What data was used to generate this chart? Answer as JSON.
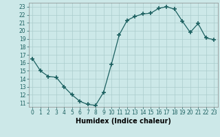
{
  "x": [
    0,
    1,
    2,
    3,
    4,
    5,
    6,
    7,
    8,
    9,
    10,
    11,
    12,
    13,
    14,
    15,
    16,
    17,
    18,
    19,
    20,
    21,
    22,
    23
  ],
  "y": [
    16.5,
    15.0,
    14.3,
    14.2,
    13.0,
    12.0,
    11.2,
    10.8,
    10.7,
    12.3,
    15.8,
    19.5,
    21.3,
    21.8,
    22.1,
    22.2,
    22.8,
    23.0,
    22.7,
    21.2,
    19.8,
    20.9,
    19.1,
    18.9
  ],
  "line_color": "#1a5f5f",
  "marker": "+",
  "marker_size": 4,
  "marker_lw": 1.2,
  "background_color": "#cce8e8",
  "grid_color": "#aacccc",
  "xlabel": "Humidex (Indice chaleur)",
  "xlim": [
    -0.5,
    23.5
  ],
  "ylim": [
    10.5,
    23.5
  ],
  "xticks": [
    0,
    1,
    2,
    3,
    4,
    5,
    6,
    7,
    8,
    9,
    10,
    11,
    12,
    13,
    14,
    15,
    16,
    17,
    18,
    19,
    20,
    21,
    22,
    23
  ],
  "yticks": [
    11,
    12,
    13,
    14,
    15,
    16,
    17,
    18,
    19,
    20,
    21,
    22,
    23
  ],
  "tick_fontsize": 5.5,
  "label_fontsize": 7.0
}
